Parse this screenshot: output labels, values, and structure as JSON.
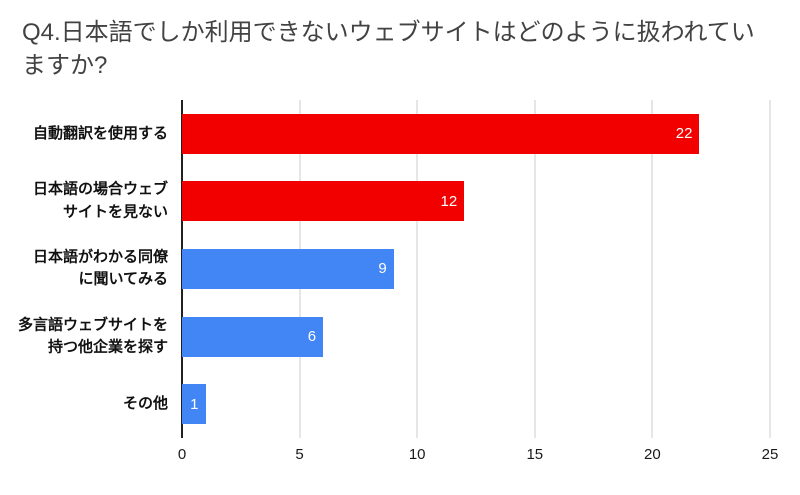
{
  "title": "Q4.日本語でしか利用できないウェブサイトはどのように扱われていますか?",
  "chart_data": {
    "type": "bar",
    "orientation": "horizontal",
    "title": "Q4.日本語でしか利用できないウェブサイトはどのように扱われていますか?",
    "categories": [
      "自動翻訳を使用する",
      "日本語の場合ウェブ\nサイトを見ない",
      "日本語がわかる同僚\nに聞いてみる",
      "多言語ウェブサイトを\n持つ他企業を探す",
      "その他"
    ],
    "values": [
      22,
      12,
      9,
      6,
      1
    ],
    "bar_colors": [
      "#f20000",
      "#f20000",
      "#4285f4",
      "#4285f4",
      "#4285f4"
    ],
    "data_label_color": "#ffffff",
    "xlabel": "",
    "ylabel": "",
    "xlim": [
      0,
      25
    ],
    "xticks": [
      0,
      5,
      10,
      15,
      20,
      25
    ],
    "grid": true,
    "legend": "none"
  }
}
